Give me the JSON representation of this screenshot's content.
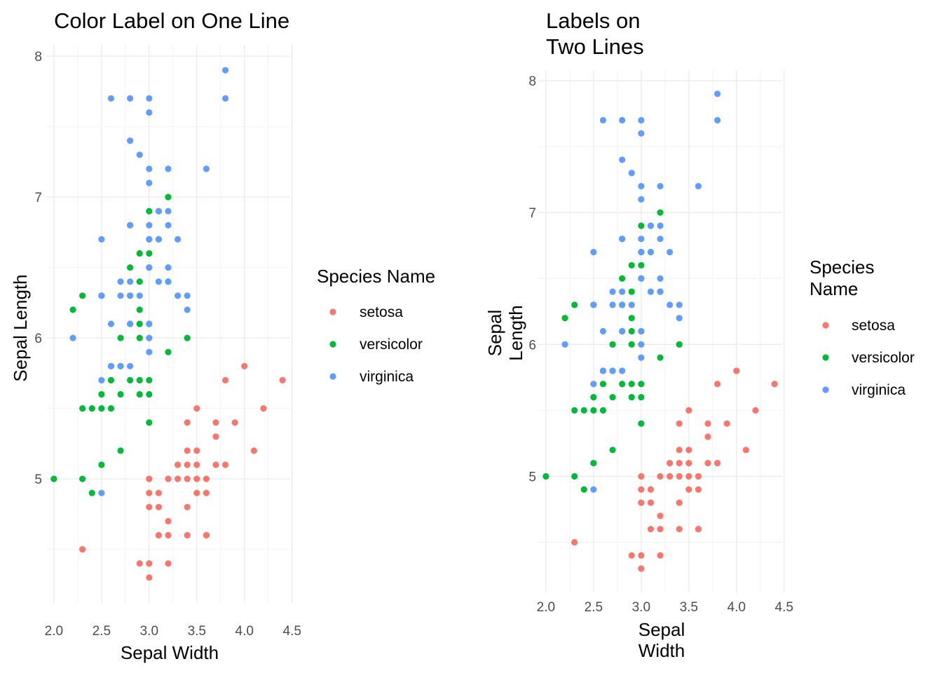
{
  "chart_data": [
    {
      "type": "scatter",
      "title": "Color Label on One Line",
      "xlabel": "Sepal Width",
      "ylabel": "Sepal Length",
      "xlim": [
        1.92,
        4.48
      ],
      "ylim": [
        4.12,
        8.08
      ],
      "xticks": [
        "2.0",
        "2.5",
        "3.0",
        "3.5",
        "4.0",
        "4.5"
      ],
      "yticks": [
        "5",
        "6",
        "7",
        "8"
      ],
      "grid": true,
      "legend": {
        "title": "Species Name",
        "position": "right",
        "entries": [
          "setosa",
          "versicolor",
          "virginica"
        ]
      },
      "colors": {
        "setosa": "#F8766D",
        "versicolor": "#00BA38",
        "virginica": "#619CFF"
      },
      "series": [
        {
          "name": "setosa",
          "points": [
            [
              2.3,
              4.5
            ],
            [
              2.9,
              4.4
            ],
            [
              3.0,
              4.4
            ],
            [
              3.2,
              4.4
            ],
            [
              3.0,
              4.3
            ],
            [
              3.0,
              4.8
            ],
            [
              3.0,
              4.9
            ],
            [
              3.1,
              4.9
            ],
            [
              3.0,
              5.0
            ],
            [
              3.1,
              4.6
            ],
            [
              3.2,
              4.6
            ],
            [
              3.2,
              4.7
            ],
            [
              3.2,
              5.0
            ],
            [
              3.3,
              5.0
            ],
            [
              3.4,
              5.0
            ],
            [
              3.5,
              5.0
            ],
            [
              3.6,
              5.0
            ],
            [
              3.4,
              4.6
            ],
            [
              3.6,
              4.6
            ],
            [
              3.4,
              4.8
            ],
            [
              3.5,
              4.9
            ],
            [
              3.6,
              4.9
            ],
            [
              3.3,
              5.1
            ],
            [
              3.4,
              5.1
            ],
            [
              3.5,
              5.1
            ],
            [
              3.7,
              5.1
            ],
            [
              3.8,
              5.1
            ],
            [
              3.4,
              5.2
            ],
            [
              3.5,
              5.2
            ],
            [
              4.1,
              5.2
            ],
            [
              3.7,
              5.3
            ],
            [
              3.4,
              5.4
            ],
            [
              3.7,
              5.4
            ],
            [
              3.9,
              5.4
            ],
            [
              3.5,
              5.5
            ],
            [
              4.2,
              5.5
            ],
            [
              3.8,
              5.7
            ],
            [
              4.4,
              5.7
            ],
            [
              4.0,
              5.8
            ],
            [
              3.1,
              4.8
            ],
            [
              3.6,
              4.6
            ]
          ]
        },
        {
          "name": "versicolor",
          "points": [
            [
              2.0,
              5.0
            ],
            [
              2.3,
              5.0
            ],
            [
              2.4,
              4.9
            ],
            [
              2.5,
              5.1
            ],
            [
              2.7,
              5.2
            ],
            [
              2.3,
              5.5
            ],
            [
              2.4,
              5.5
            ],
            [
              2.5,
              5.5
            ],
            [
              2.6,
              5.5
            ],
            [
              2.5,
              5.6
            ],
            [
              2.7,
              5.6
            ],
            [
              2.9,
              5.6
            ],
            [
              3.0,
              5.6
            ],
            [
              3.0,
              5.4
            ],
            [
              2.6,
              5.7
            ],
            [
              2.8,
              5.7
            ],
            [
              2.9,
              5.7
            ],
            [
              3.0,
              5.7
            ],
            [
              2.6,
              5.8
            ],
            [
              2.7,
              5.8
            ],
            [
              3.2,
              5.9
            ],
            [
              2.7,
              6.0
            ],
            [
              2.9,
              6.0
            ],
            [
              3.4,
              6.0
            ],
            [
              2.8,
              6.1
            ],
            [
              2.9,
              6.1
            ],
            [
              3.0,
              6.1
            ],
            [
              2.2,
              6.2
            ],
            [
              2.9,
              6.2
            ],
            [
              2.3,
              6.3
            ],
            [
              2.5,
              6.3
            ],
            [
              2.8,
              6.3
            ],
            [
              2.9,
              6.4
            ],
            [
              3.2,
              6.4
            ],
            [
              2.8,
              6.5
            ],
            [
              2.9,
              6.6
            ],
            [
              3.0,
              6.6
            ],
            [
              3.0,
              6.7
            ],
            [
              3.1,
              6.7
            ],
            [
              2.8,
              6.8
            ],
            [
              3.0,
              6.9
            ],
            [
              3.1,
              6.9
            ],
            [
              3.2,
              7.0
            ]
          ]
        },
        {
          "name": "virginica",
          "points": [
            [
              2.5,
              4.9
            ],
            [
              2.2,
              6.0
            ],
            [
              2.5,
              5.7
            ],
            [
              2.6,
              5.8
            ],
            [
              2.7,
              5.8
            ],
            [
              2.8,
              5.8
            ],
            [
              3.0,
              5.9
            ],
            [
              2.7,
              6.3
            ],
            [
              2.8,
              6.4
            ],
            [
              3.0,
              6.0
            ],
            [
              2.6,
              6.1
            ],
            [
              2.8,
              6.1
            ],
            [
              3.0,
              6.1
            ],
            [
              2.5,
              6.3
            ],
            [
              2.9,
              6.3
            ],
            [
              3.3,
              6.3
            ],
            [
              3.4,
              6.3
            ],
            [
              2.7,
              6.4
            ],
            [
              2.8,
              6.3
            ],
            [
              3.1,
              6.4
            ],
            [
              3.2,
              6.4
            ],
            [
              3.0,
              6.5
            ],
            [
              3.2,
              6.5
            ],
            [
              3.0,
              6.5
            ],
            [
              3.4,
              6.2
            ],
            [
              2.5,
              6.7
            ],
            [
              3.0,
              6.7
            ],
            [
              3.1,
              6.7
            ],
            [
              3.3,
              6.7
            ],
            [
              2.8,
              6.8
            ],
            [
              3.2,
              6.8
            ],
            [
              3.0,
              6.8
            ],
            [
              3.1,
              6.9
            ],
            [
              3.2,
              6.9
            ],
            [
              3.2,
              7.2
            ],
            [
              3.0,
              7.2
            ],
            [
              3.6,
              7.2
            ],
            [
              3.0,
              7.1
            ],
            [
              2.9,
              7.3
            ],
            [
              2.8,
              7.4
            ],
            [
              3.0,
              7.6
            ],
            [
              2.6,
              7.7
            ],
            [
              2.8,
              7.7
            ],
            [
              3.0,
              7.7
            ],
            [
              3.8,
              7.7
            ],
            [
              3.8,
              7.9
            ]
          ]
        }
      ]
    },
    {
      "type": "scatter",
      "title": "Labels on\nTwo Lines",
      "xlabel": "Sepal\nWidth",
      "ylabel": "Sepal\nLength",
      "xlim": [
        1.92,
        4.48
      ],
      "ylim": [
        4.12,
        8.08
      ],
      "xticks": [
        "2.0",
        "2.5",
        "3.0",
        "3.5",
        "4.0",
        "4.5"
      ],
      "yticks": [
        "5",
        "6",
        "7",
        "8"
      ],
      "grid": true,
      "legend": {
        "title": "Species\nName",
        "position": "right",
        "entries": [
          "setosa",
          "versicolor",
          "virginica"
        ]
      },
      "colors": {
        "setosa": "#F8766D",
        "versicolor": "#00BA38",
        "virginica": "#619CFF"
      },
      "series_ref": "same as chart 1"
    }
  ]
}
